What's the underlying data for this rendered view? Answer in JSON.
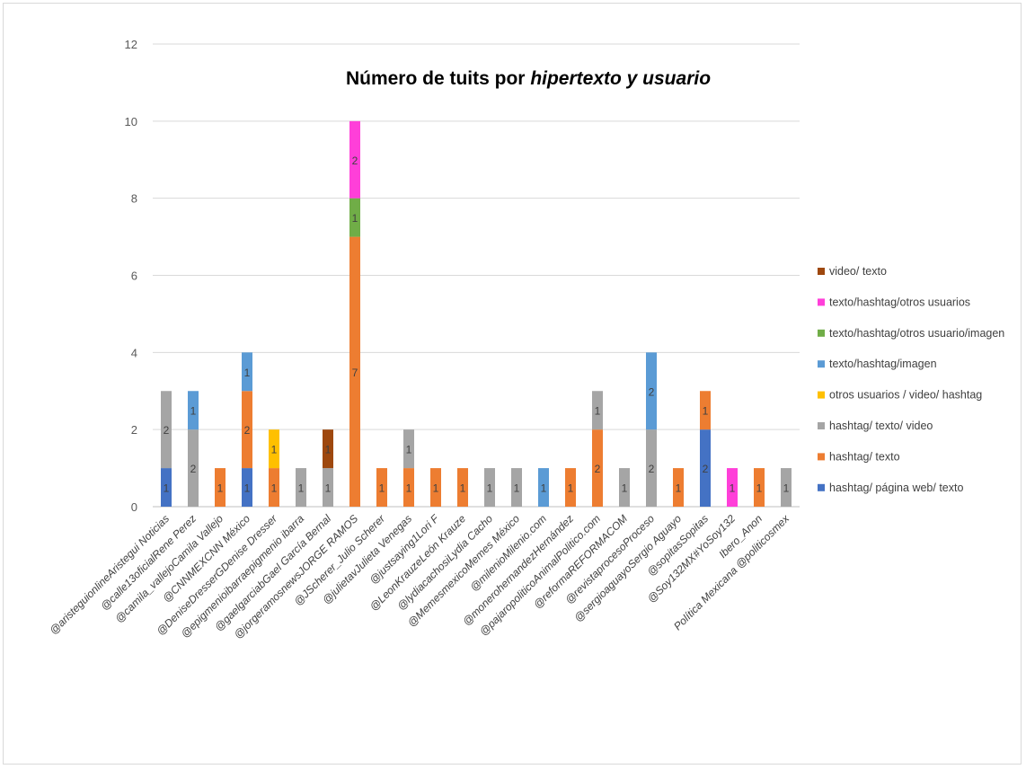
{
  "chart_data": {
    "type": "bar",
    "stacked": true,
    "title": "Número de tuits por hipertexto y usuario",
    "title_parts": [
      {
        "text": "Número de tuits por ",
        "italic": false
      },
      {
        "text": "hipertexto  y usuario",
        "italic": true
      }
    ],
    "xlabel": "",
    "ylabel": "",
    "ylim": [
      0,
      12
    ],
    "yticks": [
      "0",
      "2",
      "4",
      "6",
      "8",
      "10",
      "12"
    ],
    "grid": true,
    "legend_position": "right",
    "categories": [
      "@aristeguionlineAristegui Noticias",
      "@calle13oficialRene Perez",
      "@camila_vallejoCamila Vallejo",
      "@CNNMEXCNN México",
      "@DeniseDresserGDenise Dresser",
      "@epigmenioibarraepigmenio ibarra",
      "@gaelgarciabGael García Bernal",
      "@jorgeramosnewsJORGE RAMOS",
      "@JScherer_Julio Scherer",
      "@julietavJulieta Venegas",
      "@justsaying1Lori F",
      "@LeonKrauzeLeón Krauze",
      "@lydiacachosiLydia Cacho",
      "@MemesmexicoMemes México",
      "@milenioMilenio.com",
      "@monerohernandezHernández",
      "@pajaropoliticoAnimalPolitico.com",
      "@reformaREFORMACOM",
      "@revistaprocesoProceso",
      "@sergioaguayoSergio Aguayo",
      "@sopitasSopitas",
      "@Soy132MX#YoSoy132",
      "Ibero_Anon",
      "Política Mexicana @politicosmex"
    ],
    "series": [
      {
        "name": "hashtag/ página web/ texto",
        "color": "#4472C4",
        "values": [
          1,
          0,
          0,
          1,
          0,
          0,
          0,
          0,
          0,
          0,
          0,
          0,
          0,
          0,
          0,
          0,
          0,
          0,
          0,
          0,
          2,
          0,
          0,
          0
        ]
      },
      {
        "name": "hashtag/ texto",
        "color": "#ED7D31",
        "values": [
          0,
          0,
          1,
          2,
          1,
          0,
          0,
          7,
          1,
          1,
          1,
          1,
          0,
          0,
          0,
          1,
          2,
          0,
          0,
          1,
          1,
          0,
          1,
          0
        ]
      },
      {
        "name": "hashtag/ texto/ video",
        "color": "#A5A5A5",
        "values": [
          2,
          2,
          0,
          0,
          0,
          1,
          1,
          0,
          0,
          1,
          0,
          0,
          1,
          1,
          0,
          0,
          1,
          1,
          2,
          0,
          0,
          0,
          0,
          1
        ]
      },
      {
        "name": "otros usuarios / video/ hashtag",
        "color": "#FFC000",
        "values": [
          0,
          0,
          0,
          0,
          1,
          0,
          0,
          0,
          0,
          0,
          0,
          0,
          0,
          0,
          0,
          0,
          0,
          0,
          0,
          0,
          0,
          0,
          0,
          0
        ]
      },
      {
        "name": "texto/hashtag/imagen",
        "color": "#5B9BD5",
        "values": [
          0,
          1,
          0,
          1,
          0,
          0,
          0,
          0,
          0,
          0,
          0,
          0,
          0,
          0,
          1,
          0,
          0,
          0,
          2,
          0,
          0,
          0,
          0,
          0
        ]
      },
      {
        "name": "texto/hashtag/otros usuario/imagen",
        "color": "#70AD47",
        "values": [
          0,
          0,
          0,
          0,
          0,
          0,
          0,
          1,
          0,
          0,
          0,
          0,
          0,
          0,
          0,
          0,
          0,
          0,
          0,
          0,
          0,
          0,
          0,
          0
        ]
      },
      {
        "name": "texto/hashtag/otros usuarios",
        "color": "#FF3FD9",
        "values": [
          0,
          0,
          0,
          0,
          0,
          0,
          0,
          2,
          0,
          0,
          0,
          0,
          0,
          0,
          0,
          0,
          0,
          0,
          0,
          0,
          0,
          1,
          0,
          0
        ]
      },
      {
        "name": "video/ texto",
        "color": "#9E480E",
        "values": [
          0,
          0,
          0,
          0,
          0,
          0,
          1,
          0,
          0,
          0,
          0,
          0,
          0,
          0,
          0,
          0,
          0,
          0,
          0,
          0,
          0,
          0,
          0,
          0
        ]
      }
    ],
    "legend_order": [
      "video/ texto",
      "texto/hashtag/otros usuarios",
      "texto/hashtag/otros usuario/imagen",
      "texto/hashtag/imagen",
      "otros usuarios / video/ hashtag",
      "hashtag/ texto/ video",
      "hashtag/ texto",
      "hashtag/ página web/ texto"
    ],
    "gridline_color": "#d9d9d9",
    "axis_color": "#bfbfbf"
  }
}
